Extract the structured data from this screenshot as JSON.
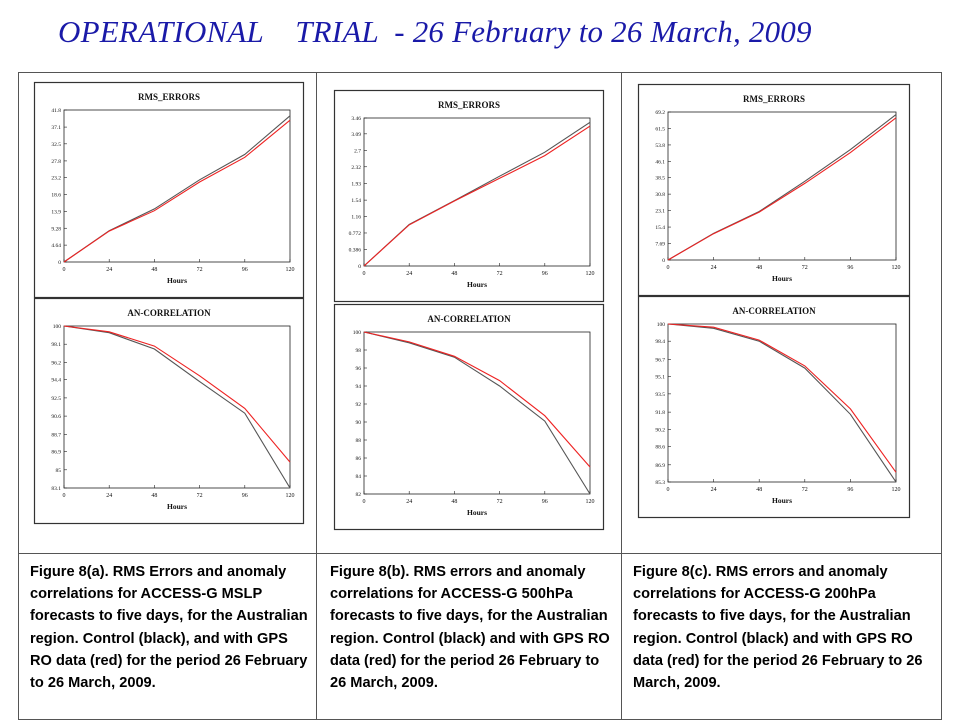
{
  "title": "OPERATIONAL    TRIAL  - 26 February to 26 March, 2009",
  "colors": {
    "title": "#1a1aa8",
    "control": "#555555",
    "gps_ro": "#ee2222"
  },
  "captions": [
    "Figure 8(a).  RMS Errors and anomaly correlations for ACCESS-G MSLP forecasts to five days, for the Australian region. Control (black), and with GPS RO data (red) for the period 26 February to 26 March, 2009.",
    "Figure 8(b).  RMS errors and anomaly correlations for ACCESS-G 500hPa forecasts to five days, for the Australian region. Control (black) and with GPS RO data (red) for the period 26 February to 26 March, 2009.",
    "Figure 8(c).  RMS errors and anomaly correlations for ACCESS-G 200hPa forecasts to five days, for the Australian region. Control (black) and with GPS RO data (red) for the period 26 February to 26 March, 2009."
  ],
  "chart_data": [
    {
      "type": "line",
      "title": "RMS_ERRORS",
      "xlabel": "Hours",
      "ylabel": "",
      "x": [
        0,
        24,
        48,
        72,
        96,
        120
      ],
      "xlim": [
        0,
        120
      ],
      "ylim": [
        0,
        41.8
      ],
      "yticks": [
        "0",
        "4.64",
        "9.28",
        "13.9",
        "18.6",
        "23.2",
        "27.8",
        "32.5",
        "37.1",
        "41.8"
      ],
      "xticks": [
        "0",
        "24",
        "48",
        "72",
        "96",
        "120"
      ],
      "series": [
        {
          "values": [
            0,
            8.6,
            14.6,
            22.6,
            29.6,
            40.2
          ]
        },
        {
          "values": [
            0,
            8.5,
            14.1,
            22.0,
            28.8,
            39.0
          ]
        }
      ]
    },
    {
      "type": "line",
      "title": "AN-CORRELATION",
      "xlabel": "Hours",
      "ylabel": "",
      "x": [
        0,
        24,
        48,
        72,
        96,
        120
      ],
      "xlim": [
        0,
        120
      ],
      "ylim": [
        83.1,
        100
      ],
      "yticks": [
        "83.1",
        "85",
        "86.9",
        "88.7",
        "90.6",
        "92.5",
        "94.4",
        "96.2",
        "98.1",
        "100"
      ],
      "xticks": [
        "0",
        "24",
        "48",
        "72",
        "96",
        "120"
      ],
      "series": [
        {
          "values": [
            100,
            99.3,
            97.6,
            94.2,
            90.9,
            83.1
          ]
        },
        {
          "values": [
            100,
            99.4,
            97.9,
            94.8,
            91.4,
            85.8
          ]
        }
      ]
    },
    {
      "type": "line",
      "title": "RMS_ERRORS",
      "xlabel": "Hours",
      "ylabel": "",
      "x": [
        0,
        24,
        48,
        72,
        96,
        120
      ],
      "xlim": [
        0,
        120
      ],
      "ylim": [
        0,
        3.46
      ],
      "yticks": [
        "0",
        "0.386",
        "0.772",
        "1.16",
        "1.54",
        "1.93",
        "2.32",
        "2.7",
        "3.09",
        "3.46"
      ],
      "xticks": [
        "0",
        "24",
        "48",
        "72",
        "96",
        "120"
      ],
      "series": [
        {
          "values": [
            0,
            0.97,
            1.53,
            2.1,
            2.66,
            3.36
          ]
        },
        {
          "values": [
            0,
            0.96,
            1.52,
            2.05,
            2.58,
            3.27
          ]
        }
      ]
    },
    {
      "type": "line",
      "title": "AN-CORRELATION",
      "xlabel": "Hours",
      "ylabel": "",
      "x": [
        0,
        24,
        48,
        72,
        96,
        120
      ],
      "xlim": [
        0,
        120
      ],
      "ylim": [
        82,
        100
      ],
      "yticks": [
        "82",
        "84",
        "86",
        "88",
        "90",
        "92",
        "94",
        "96",
        "98",
        "100"
      ],
      "xticks": [
        "0",
        "24",
        "48",
        "72",
        "96",
        "120"
      ],
      "series": [
        {
          "values": [
            100,
            98.8,
            97.2,
            94.0,
            90.1,
            82.0
          ]
        },
        {
          "values": [
            100,
            98.9,
            97.3,
            94.6,
            90.7,
            85.0
          ]
        }
      ]
    },
    {
      "type": "line",
      "title": "RMS_ERRORS",
      "xlabel": "Hours",
      "ylabel": "",
      "x": [
        0,
        24,
        48,
        72,
        96,
        120
      ],
      "xlim": [
        0,
        120
      ],
      "ylim": [
        0,
        69.2
      ],
      "yticks": [
        "0",
        "7.69",
        "15.4",
        "23.1",
        "30.8",
        "38.5",
        "46.1",
        "53.8",
        "61.5",
        "69.2"
      ],
      "xticks": [
        "0",
        "24",
        "48",
        "72",
        "96",
        "120"
      ],
      "series": [
        {
          "values": [
            0,
            12.5,
            22.7,
            36.8,
            51.6,
            68.0
          ]
        },
        {
          "values": [
            0,
            12.3,
            22.4,
            35.8,
            50.2,
            66.5
          ]
        }
      ]
    },
    {
      "type": "line",
      "title": "AN-CORRELATION",
      "xlabel": "Hours",
      "ylabel": "",
      "x": [
        0,
        24,
        48,
        72,
        96,
        120
      ],
      "xlim": [
        0,
        120
      ],
      "ylim": [
        85.3,
        100
      ],
      "yticks": [
        "85.3",
        "86.9",
        "88.6",
        "90.2",
        "91.8",
        "93.5",
        "95.1",
        "96.7",
        "98.4",
        "100"
      ],
      "xticks": [
        "0",
        "24",
        "48",
        "72",
        "96",
        "120"
      ],
      "series": [
        {
          "values": [
            100,
            99.6,
            98.4,
            95.9,
            91.6,
            85.3
          ]
        },
        {
          "values": [
            100,
            99.7,
            98.5,
            96.1,
            92.1,
            86.2
          ]
        }
      ]
    }
  ]
}
